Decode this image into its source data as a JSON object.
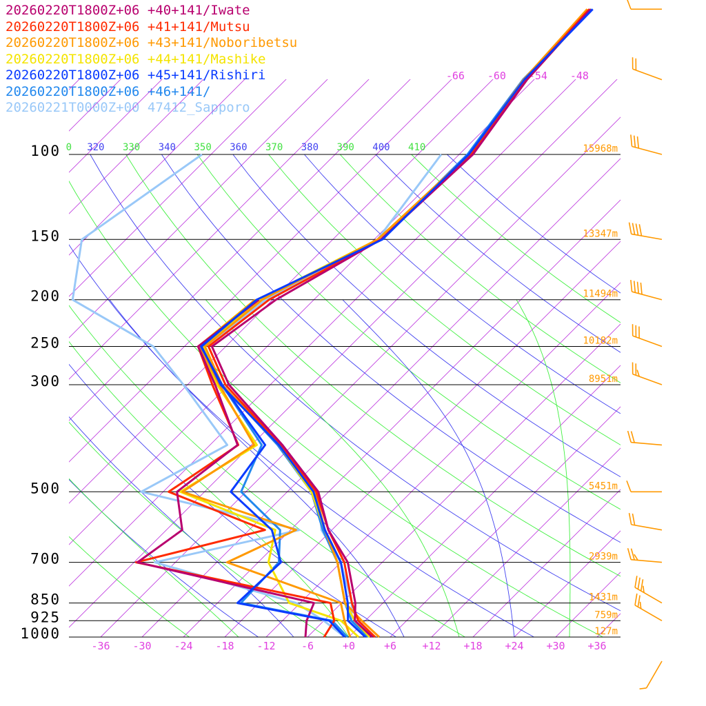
{
  "chart_data": {
    "type": "line",
    "subtype": "skew-T log-P sounding",
    "y_axis": {
      "scale": "log",
      "range_hPa": [
        1000,
        100
      ],
      "tick_labels": [
        "100",
        "150",
        "200",
        "250",
        "300",
        "500",
        "700",
        "850",
        "925",
        "1000"
      ]
    },
    "x_axis": {
      "unit": "°C",
      "range": [
        -42,
        40
      ],
      "tick_labels": [
        "-36",
        "-30",
        "-24",
        "-18",
        "-12",
        "-6",
        "+0",
        "+6",
        "+12",
        "+18",
        "+24",
        "+30",
        "+36"
      ]
    },
    "isotherm_top_labels": [
      "-66",
      "-60",
      "-54",
      "-48"
    ],
    "theta_labels": [
      "0",
      "320",
      "330",
      "340",
      "350",
      "360",
      "370",
      "380",
      "390",
      "400",
      "410"
    ],
    "height_labels": [
      {
        "p": 100,
        "text": "15968m"
      },
      {
        "p": 150,
        "text": "13347m"
      },
      {
        "p": 200,
        "text": "11494m"
      },
      {
        "p": 250,
        "text": "10182m"
      },
      {
        "p": 300,
        "text": "8951m"
      },
      {
        "p": 500,
        "text": "5451m"
      },
      {
        "p": 700,
        "text": "2939m"
      },
      {
        "p": 850,
        "text": "1431m"
      },
      {
        "p": 925,
        "text": "759m"
      },
      {
        "p": 1000,
        "text": "127m"
      }
    ],
    "pressure_levels": [
      1000,
      925,
      850,
      700,
      600,
      500,
      400,
      300,
      250,
      200,
      150,
      100,
      70,
      50
    ],
    "series": [
      {
        "name": "20260220T1800Z+06 +40+141/Iwate",
        "color": "#b8006e",
        "temperature": [
          3.4,
          -1.5,
          -4.0,
          -11.0,
          -18.5,
          -25.5,
          -37.5,
          -54.0,
          -62.0,
          -59.5,
          -53.0,
          -52.0,
          -55.0,
          -56.0
        ],
        "dewpoint": [
          -6.3,
          -8.5,
          -10.0,
          -41.5,
          -39.7,
          -46.0,
          -44.0,
          -56.0,
          -64.0,
          -62.0,
          null,
          null,
          null,
          null
        ]
      },
      {
        "name": "20260220T1800Z+06 +41+141/Mutsu",
        "color": "#ff2a00",
        "temperature": [
          3.8,
          -1.0,
          -4.5,
          -11.5,
          -18.5,
          -25.8,
          -37.8,
          -54.5,
          -62.5,
          -60.5,
          -53.0,
          -52.3,
          -55.2,
          -56.2
        ],
        "dewpoint": [
          -3.6,
          -4.5,
          -7.6,
          -41.7,
          -27.7,
          -47.2,
          -43.9,
          -56.4,
          -64.0,
          -62.0,
          null,
          null,
          null,
          null
        ]
      },
      {
        "name": "20260220T1800Z+06 +43+141/Noboribetsu",
        "color": "#ff9900",
        "temperature": [
          4.4,
          -0.5,
          -5.5,
          -12.5,
          -19.0,
          -26.0,
          -38.0,
          -55.0,
          -63.0,
          -61.5,
          -53.5,
          -52.5,
          -55.5,
          -56.5
        ],
        "dewpoint": [
          0.2,
          -3.0,
          -6.1,
          -28.5,
          -23.2,
          -45.2,
          -41.6,
          -55.4,
          -63.8,
          -62.5,
          null,
          null,
          null,
          null
        ]
      },
      {
        "name": "20260220T1800Z+06 +44+141/Mashike",
        "color": "#f4e400",
        "temperature": [
          3.0,
          -1.5,
          -5.5,
          -12.5,
          -19.0,
          -26.5,
          -38.0,
          -55.2,
          -63.3,
          -62.0,
          -53.5,
          -52.2,
          -55.0,
          -56.0
        ],
        "dewpoint": [
          1.4,
          -3.5,
          -13.6,
          -22.5,
          -26.2,
          -45.5,
          -41.2,
          -55.7,
          -64.0,
          -62.5,
          null,
          null,
          null,
          null
        ]
      },
      {
        "name": "20260220T1800Z+06 +45+141/Rishiri",
        "color": "#0a3cff",
        "temperature": [
          2.4,
          -2.5,
          -5.1,
          -12.0,
          -19.0,
          -26.2,
          -38.0,
          -55.2,
          -63.5,
          -62.3,
          -52.8,
          -52.6,
          -55.4,
          -55.7
        ],
        "dewpoint": [
          -0.6,
          -5.2,
          -21.1,
          -20.7,
          -26.7,
          -38.2,
          -40.0,
          -55.0,
          -63.6,
          -62.3,
          null,
          null,
          null,
          null
        ]
      },
      {
        "name": "20260220T1800Z+06 +46+141/",
        "color": "#2288ee",
        "temperature": [
          2.8,
          -2.0,
          -5.5,
          -12.5,
          -19.3,
          -26.5,
          -38.2,
          -55.0,
          -63.2,
          -62.0,
          -53.0,
          -52.8,
          -55.6,
          -55.9
        ],
        "dewpoint": [
          -0.2,
          -4.8,
          -20.6,
          -21.0,
          -25.5,
          -36.7,
          -40.5,
          -55.0,
          -63.5,
          -62.0,
          null,
          null,
          null,
          null
        ]
      },
      {
        "name": "20260221T0000Z+00 47412_Sapporo",
        "color": "#99c8f8",
        "temperature": [
          3.0,
          -2.0,
          -4.5,
          -12.0,
          -19.5,
          -25.5,
          -37.5,
          -55.5,
          -63.0,
          -61.0,
          -53.5,
          -56.6,
          null,
          null
        ],
        "dewpoint": [
          -0.6,
          -6.0,
          -12.6,
          -39.0,
          -22.7,
          -51.2,
          -45.5,
          -60.6,
          -70.5,
          -89.0,
          -96.4,
          -91.3,
          null,
          null
        ]
      }
    ],
    "wind_barbs": {
      "color": "#ff9900",
      "levels": [
        {
          "p": 1000,
          "dir": 210,
          "kt": 5
        },
        {
          "p": 925,
          "dir": 300,
          "kt": 25
        },
        {
          "p": 850,
          "dir": 300,
          "kt": 35
        },
        {
          "p": 700,
          "dir": 275,
          "kt": 25
        },
        {
          "p": 600,
          "dir": 280,
          "kt": 20
        },
        {
          "p": 500,
          "dir": 270,
          "kt": 10
        },
        {
          "p": 400,
          "dir": 275,
          "kt": 20
        },
        {
          "p": 300,
          "dir": 290,
          "kt": 25
        },
        {
          "p": 250,
          "dir": 290,
          "kt": 30
        },
        {
          "p": 200,
          "dir": 285,
          "kt": 40
        },
        {
          "p": 150,
          "dir": 280,
          "kt": 40
        },
        {
          "p": 100,
          "dir": 285,
          "kt": 30
        },
        {
          "p": 70,
          "dir": 290,
          "kt": 20
        },
        {
          "p": 50,
          "dir": 270,
          "kt": 10
        }
      ]
    }
  }
}
